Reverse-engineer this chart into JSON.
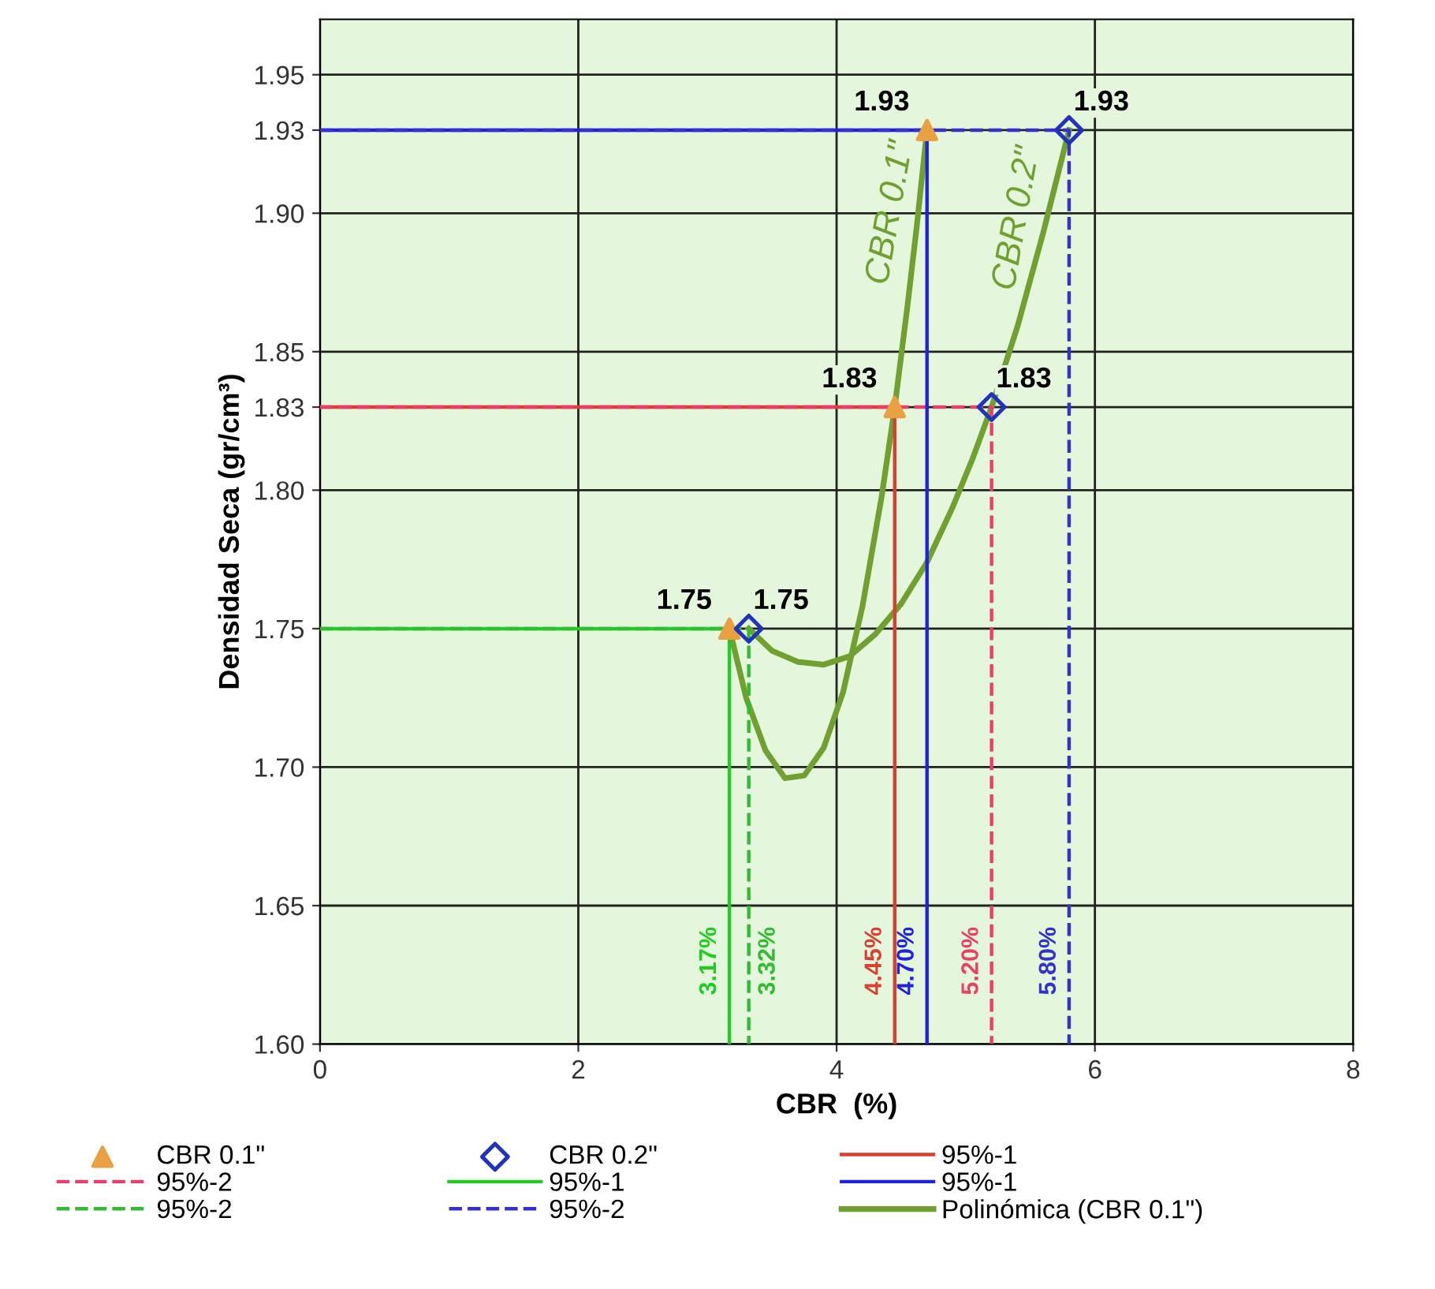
{
  "chart_data": {
    "type": "scatter",
    "xlabel": "CBR  (%)",
    "ylabel": "Densidad Seca (gr/cm³)",
    "xlim": [
      0,
      8
    ],
    "xticks": [
      0,
      2,
      4,
      6,
      8
    ],
    "ylim": [
      1.6,
      1.97
    ],
    "yticks": [
      {
        "value": 1.6,
        "label": "1.60"
      },
      {
        "value": 1.65,
        "label": "1.65"
      },
      {
        "value": 1.7,
        "label": "1.70"
      },
      {
        "value": 1.75,
        "label": "1.75"
      },
      {
        "value": 1.8,
        "label": "1.80"
      },
      {
        "value": 1.83,
        "label": "1.83"
      },
      {
        "value": 1.85,
        "label": "1.85"
      },
      {
        "value": 1.9,
        "label": "1.90"
      },
      {
        "value": 1.93,
        "label": "1.93"
      },
      {
        "value": 1.95,
        "label": "1.95"
      }
    ],
    "grid": true,
    "legend": "bottom",
    "series": [
      {
        "name": "CBR 0.1\"",
        "marker": "triangle",
        "color": "#e8a040",
        "x": [
          3.17,
          4.45,
          4.7
        ],
        "values": [
          1.75,
          1.83,
          1.93
        ],
        "value_labels": [
          "1.75",
          "1.83",
          "1.93"
        ]
      },
      {
        "name": "CBR 0.2\"",
        "marker": "diamond",
        "color": "#2233bb",
        "x": [
          3.32,
          5.2,
          5.8
        ],
        "values": [
          1.75,
          1.83,
          1.93
        ],
        "value_labels": [
          "1.75",
          "1.83",
          "1.93"
        ]
      },
      {
        "name": "95%-1",
        "type": "line",
        "line_style": "solid",
        "color": "#d84030",
        "x": [
          0,
          4.45,
          4.45
        ],
        "values": [
          1.83,
          1.83,
          1.6
        ]
      },
      {
        "name": "95%-2",
        "type": "line",
        "line_style": "dashed",
        "color": "#e8406a",
        "x": [
          0,
          5.2,
          5.2
        ],
        "values": [
          1.83,
          1.83,
          1.6
        ]
      },
      {
        "name": "95%-1",
        "type": "line",
        "line_style": "solid",
        "color": "#22cc22",
        "x": [
          0,
          3.17,
          3.17
        ],
        "values": [
          1.75,
          1.75,
          1.6
        ]
      },
      {
        "name": "95%-1",
        "type": "line",
        "line_style": "solid",
        "color": "#2222dd",
        "x": [
          0,
          4.7,
          4.7
        ],
        "values": [
          1.93,
          1.93,
          1.6
        ]
      },
      {
        "name": "95%-2",
        "type": "line",
        "line_style": "dashed",
        "color": "#33bb33",
        "x": [
          0,
          3.32,
          3.32
        ],
        "values": [
          1.75,
          1.75,
          1.6
        ]
      },
      {
        "name": "95%-2",
        "type": "line",
        "line_style": "dashed",
        "color": "#3333cc",
        "x": [
          0,
          5.8,
          5.8
        ],
        "values": [
          1.93,
          1.93,
          1.6
        ]
      },
      {
        "name": "Polinómica (CBR 0.1\")",
        "type": "line",
        "line_style": "solid",
        "color": "#70a030",
        "x": [
          3.17,
          3.3,
          3.45,
          3.6,
          3.75,
          3.9,
          4.05,
          4.2,
          4.35,
          4.45,
          4.55,
          4.62,
          4.7
        ],
        "values": [
          1.75,
          1.725,
          1.706,
          1.696,
          1.697,
          1.707,
          1.727,
          1.758,
          1.798,
          1.83,
          1.867,
          1.895,
          1.93
        ]
      },
      {
        "type": "line",
        "line_style": "solid",
        "color": "#70a030",
        "x": [
          3.32,
          3.5,
          3.7,
          3.9,
          4.1,
          4.3,
          4.5,
          4.7,
          4.9,
          5.05,
          5.2,
          5.4,
          5.6,
          5.8
        ],
        "values": [
          1.75,
          1.742,
          1.738,
          1.737,
          1.74,
          1.748,
          1.759,
          1.774,
          1.794,
          1.811,
          1.83,
          1.859,
          1.893,
          1.93
        ]
      }
    ],
    "annotations": [
      "CBR 0.1\"",
      "CBR 0.2\"",
      {
        "text": "3.17%",
        "x": 3.17,
        "y": 1.63
      },
      {
        "text": "3.32%",
        "x": 3.32,
        "y": 1.63
      },
      {
        "text": "4.45%",
        "x": 4.45,
        "y": 1.63
      },
      {
        "text": "4.70%",
        "x": 4.7,
        "y": 1.63
      },
      {
        "text": "5.20%",
        "x": 5.2,
        "y": 1.63
      },
      {
        "text": "5.80%",
        "x": 5.8,
        "y": 1.63
      }
    ]
  }
}
